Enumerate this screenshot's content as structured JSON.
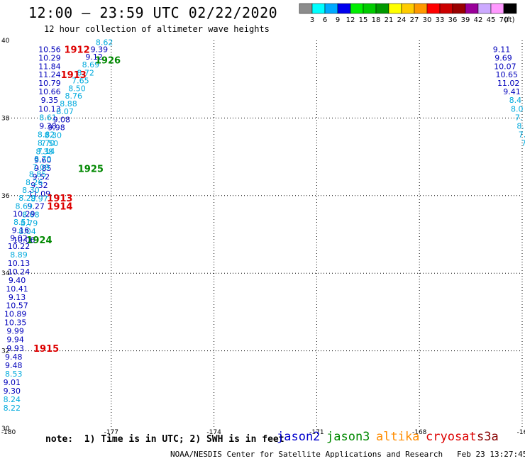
{
  "title": "12:00 — 23:59 UTC 02/22/2020",
  "subtitle": "12 hour collection of altimeter wave heights",
  "colorbar": {
    "labels": [
      "3",
      "6",
      "9",
      "12",
      "15",
      "18",
      "21",
      "24",
      "27",
      "30",
      "33",
      "36",
      "39",
      "42",
      "45",
      "70"
    ],
    "unit": "(ft)",
    "colors": [
      "#8c8c8c",
      "#00ffff",
      "#00aaff",
      "#0000ee",
      "#00ee00",
      "#00cc00",
      "#009900",
      "#ffff00",
      "#ffcc00",
      "#ff9900",
      "#ff0000",
      "#cc0000",
      "#990000",
      "#990099",
      "#ccaaff",
      "#ff99ff",
      "#000000"
    ]
  },
  "footer": {
    "note": "note:  1) Time is in UTC; 2) SWH is in feet",
    "credit": "NOAA/NESDIS Center for Satellite Applications and Research   Feb 23 13:27:45 UTC 2020"
  },
  "satellites": [
    {
      "name": "jason2",
      "color": "#0000cc"
    },
    {
      "name": "jason3",
      "color": "#008800"
    },
    {
      "name": "altika",
      "color": "#ff8c00"
    },
    {
      "name": "cryosat",
      "color": "#dd0000"
    },
    {
      "name": "s3a",
      "color": "#880000"
    }
  ],
  "chart_data": {
    "type": "scatter",
    "xlim": [
      -180,
      -165
    ],
    "ylim": [
      30,
      40
    ],
    "x_ticks": [
      "-180",
      "-177",
      "-174",
      "-171",
      "-168",
      "-16"
    ],
    "y_ticks": [
      "30",
      "32",
      "34",
      "36",
      "38",
      "40"
    ],
    "grid": true,
    "colors": {
      "dark_blue": "#0000bb",
      "light_blue": "#00aadd",
      "green": "#008800",
      "red": "#dd0000"
    },
    "points": [
      {
        "x": -178.8,
        "y": 39.77,
        "label": "10.56",
        "c": "dark_blue"
      },
      {
        "x": -178.8,
        "y": 39.55,
        "label": "10.29",
        "c": "dark_blue"
      },
      {
        "x": -178.8,
        "y": 39.33,
        "label": "11.84",
        "c": "dark_blue"
      },
      {
        "x": -178.8,
        "y": 39.12,
        "label": "11.24",
        "c": "dark_blue"
      },
      {
        "x": -178.8,
        "y": 38.9,
        "label": "10.79",
        "c": "dark_blue"
      },
      {
        "x": -178.8,
        "y": 38.68,
        "label": "10.66",
        "c": "dark_blue"
      },
      {
        "x": -178.8,
        "y": 38.46,
        "label": "9.35",
        "c": "dark_blue"
      },
      {
        "x": -178.8,
        "y": 38.24,
        "label": "10.13",
        "c": "dark_blue"
      },
      {
        "x": -178.85,
        "y": 38.02,
        "label": "8.61",
        "c": "light_blue"
      },
      {
        "x": -178.85,
        "y": 37.8,
        "label": "9.38",
        "c": "dark_blue"
      },
      {
        "x": -178.9,
        "y": 37.58,
        "label": "8.82",
        "c": "light_blue"
      },
      {
        "x": -178.9,
        "y": 37.36,
        "label": "8.70",
        "c": "light_blue"
      },
      {
        "x": -178.95,
        "y": 37.14,
        "label": "8.38",
        "c": "light_blue"
      },
      {
        "x": -179.0,
        "y": 36.92,
        "label": "9.60",
        "c": "dark_blue"
      },
      {
        "x": -179.0,
        "y": 36.71,
        "label": "9.85",
        "c": "dark_blue"
      },
      {
        "x": -179.05,
        "y": 36.49,
        "label": "9.52",
        "c": "dark_blue"
      },
      {
        "x": -179.1,
        "y": 36.27,
        "label": "9.32",
        "c": "dark_blue"
      },
      {
        "x": -179.1,
        "y": 36.05,
        "label": "11.09",
        "c": "dark_blue"
      },
      {
        "x": -179.1,
        "y": 35.92,
        "label": "8.97",
        "c": "light_blue"
      },
      {
        "x": -179.2,
        "y": 35.73,
        "label": "9.27",
        "c": "dark_blue"
      },
      {
        "x": -179.35,
        "y": 35.51,
        "label": "8.68",
        "c": "light_blue"
      },
      {
        "x": -179.4,
        "y": 35.29,
        "label": "8.79",
        "c": "light_blue"
      },
      {
        "x": -179.45,
        "y": 35.08,
        "label": "8.04",
        "c": "light_blue"
      },
      {
        "x": -179.55,
        "y": 34.86,
        "label": "10.06",
        "c": "dark_blue"
      },
      {
        "x": -177.2,
        "y": 39.95,
        "label": "8.62",
        "c": "light_blue"
      },
      {
        "x": -177.35,
        "y": 39.77,
        "label": "9.39",
        "c": "dark_blue"
      },
      {
        "x": -177.5,
        "y": 39.58,
        "label": "9.12",
        "c": "dark_blue"
      },
      {
        "x": -177.6,
        "y": 39.38,
        "label": "8.69",
        "c": "light_blue"
      },
      {
        "x": -177.75,
        "y": 39.17,
        "label": "8.72",
        "c": "light_blue"
      },
      {
        "x": -177.9,
        "y": 38.97,
        "label": "7.65",
        "c": "light_blue"
      },
      {
        "x": -178.0,
        "y": 38.77,
        "label": "8.50",
        "c": "light_blue"
      },
      {
        "x": -178.1,
        "y": 38.57,
        "label": "8.76",
        "c": "light_blue"
      },
      {
        "x": -178.25,
        "y": 38.37,
        "label": "8.88",
        "c": "light_blue"
      },
      {
        "x": -178.35,
        "y": 38.17,
        "label": "8.07",
        "c": "light_blue"
      },
      {
        "x": -178.45,
        "y": 37.96,
        "label": "9.08",
        "c": "dark_blue"
      },
      {
        "x": -178.6,
        "y": 37.76,
        "label": "9.98",
        "c": "dark_blue"
      },
      {
        "x": -178.7,
        "y": 37.56,
        "label": "8.30",
        "c": "light_blue"
      },
      {
        "x": -178.8,
        "y": 37.35,
        "label": "7.50",
        "c": "light_blue"
      },
      {
        "x": -178.9,
        "y": 37.15,
        "label": "7.14",
        "c": "light_blue"
      },
      {
        "x": -179.0,
        "y": 36.95,
        "label": "8.70",
        "c": "light_blue"
      },
      {
        "x": -179.05,
        "y": 36.74,
        "label": "7.09",
        "c": "light_blue"
      },
      {
        "x": -179.15,
        "y": 36.55,
        "label": "8.85",
        "c": "light_blue"
      },
      {
        "x": -179.25,
        "y": 36.34,
        "label": "8.26",
        "c": "light_blue"
      },
      {
        "x": -179.35,
        "y": 36.14,
        "label": "8.30",
        "c": "light_blue"
      },
      {
        "x": -179.45,
        "y": 35.94,
        "label": "8.29",
        "c": "light_blue"
      },
      {
        "x": -179.55,
        "y": 35.73,
        "label": "8.69",
        "c": "light_blue"
      },
      {
        "x": -179.55,
        "y": 35.53,
        "label": "10.29",
        "c": "dark_blue"
      },
      {
        "x": -179.6,
        "y": 35.32,
        "label": "8.51",
        "c": "light_blue"
      },
      {
        "x": -179.65,
        "y": 35.11,
        "label": "9.16",
        "c": "dark_blue"
      },
      {
        "x": -179.7,
        "y": 34.91,
        "label": "9.02",
        "c": "dark_blue"
      },
      {
        "x": -179.7,
        "y": 34.7,
        "label": "10.22",
        "c": "dark_blue"
      },
      {
        "x": -179.7,
        "y": 34.48,
        "label": "8.89",
        "c": "light_blue"
      },
      {
        "x": -179.7,
        "y": 34.26,
        "label": "10.13",
        "c": "dark_blue"
      },
      {
        "x": -179.7,
        "y": 34.04,
        "label": "10.24",
        "c": "dark_blue"
      },
      {
        "x": -179.75,
        "y": 33.82,
        "label": "9.40",
        "c": "dark_blue"
      },
      {
        "x": -179.75,
        "y": 33.6,
        "label": "10.41",
        "c": "dark_blue"
      },
      {
        "x": -179.75,
        "y": 33.38,
        "label": "9.13",
        "c": "dark_blue"
      },
      {
        "x": -179.75,
        "y": 33.17,
        "label": "10.57",
        "c": "dark_blue"
      },
      {
        "x": -179.8,
        "y": 32.95,
        "label": "10.89",
        "c": "dark_blue"
      },
      {
        "x": -179.8,
        "y": 32.73,
        "label": "10.35",
        "c": "dark_blue"
      },
      {
        "x": -179.8,
        "y": 32.51,
        "label": "9.99",
        "c": "dark_blue"
      },
      {
        "x": -179.8,
        "y": 32.29,
        "label": "9.94",
        "c": "dark_blue"
      },
      {
        "x": -179.8,
        "y": 32.07,
        "label": "9.93",
        "c": "dark_blue"
      },
      {
        "x": -179.85,
        "y": 31.85,
        "label": "9.48",
        "c": "dark_blue"
      },
      {
        "x": -179.85,
        "y": 31.63,
        "label": "9.48",
        "c": "dark_blue"
      },
      {
        "x": -179.85,
        "y": 31.41,
        "label": "8.53",
        "c": "light_blue"
      },
      {
        "x": -179.9,
        "y": 31.19,
        "label": "9.01",
        "c": "dark_blue"
      },
      {
        "x": -179.9,
        "y": 30.97,
        "label": "9.30",
        "c": "dark_blue"
      },
      {
        "x": -179.9,
        "y": 30.75,
        "label": "8.24",
        "c": "light_blue"
      },
      {
        "x": -179.9,
        "y": 30.53,
        "label": "8.22",
        "c": "light_blue"
      },
      {
        "x": -165.6,
        "y": 39.77,
        "label": "9.11",
        "c": "dark_blue"
      },
      {
        "x": -165.55,
        "y": 39.55,
        "label": "9.69",
        "c": "dark_blue"
      },
      {
        "x": -165.5,
        "y": 39.33,
        "label": "10.07",
        "c": "dark_blue"
      },
      {
        "x": -165.45,
        "y": 39.12,
        "label": "10.65",
        "c": "dark_blue"
      },
      {
        "x": -165.4,
        "y": 38.9,
        "label": "11.02",
        "c": "dark_blue"
      },
      {
        "x": -165.3,
        "y": 38.68,
        "label": "9.41",
        "c": "dark_blue"
      },
      {
        "x": -165.2,
        "y": 38.46,
        "label": "8.4",
        "c": "light_blue"
      },
      {
        "x": -165.15,
        "y": 38.24,
        "label": "8.0",
        "c": "light_blue"
      },
      {
        "x": -165.1,
        "y": 38.02,
        "label": "7.",
        "c": "light_blue"
      },
      {
        "x": -165.05,
        "y": 37.8,
        "label": "8.",
        "c": "light_blue"
      },
      {
        "x": -165.0,
        "y": 37.58,
        "label": "7.",
        "c": "light_blue"
      },
      {
        "x": -164.95,
        "y": 37.36,
        "label": "7",
        "c": "light_blue"
      }
    ],
    "pass_labels": [
      {
        "x": -178.0,
        "y": 39.77,
        "label": "1912",
        "c": "red"
      },
      {
        "x": -177.1,
        "y": 39.5,
        "label": "1926",
        "c": "green"
      },
      {
        "x": -178.1,
        "y": 39.12,
        "label": "1913",
        "c": "red"
      },
      {
        "x": -177.6,
        "y": 36.7,
        "label": "1925",
        "c": "green"
      },
      {
        "x": -178.5,
        "y": 35.94,
        "label": "1913",
        "c": "red"
      },
      {
        "x": -178.5,
        "y": 35.73,
        "label": "1914",
        "c": "red"
      },
      {
        "x": -179.1,
        "y": 34.86,
        "label": "1924",
        "c": "green"
      },
      {
        "x": -178.9,
        "y": 32.07,
        "label": "1915",
        "c": "red"
      }
    ]
  }
}
